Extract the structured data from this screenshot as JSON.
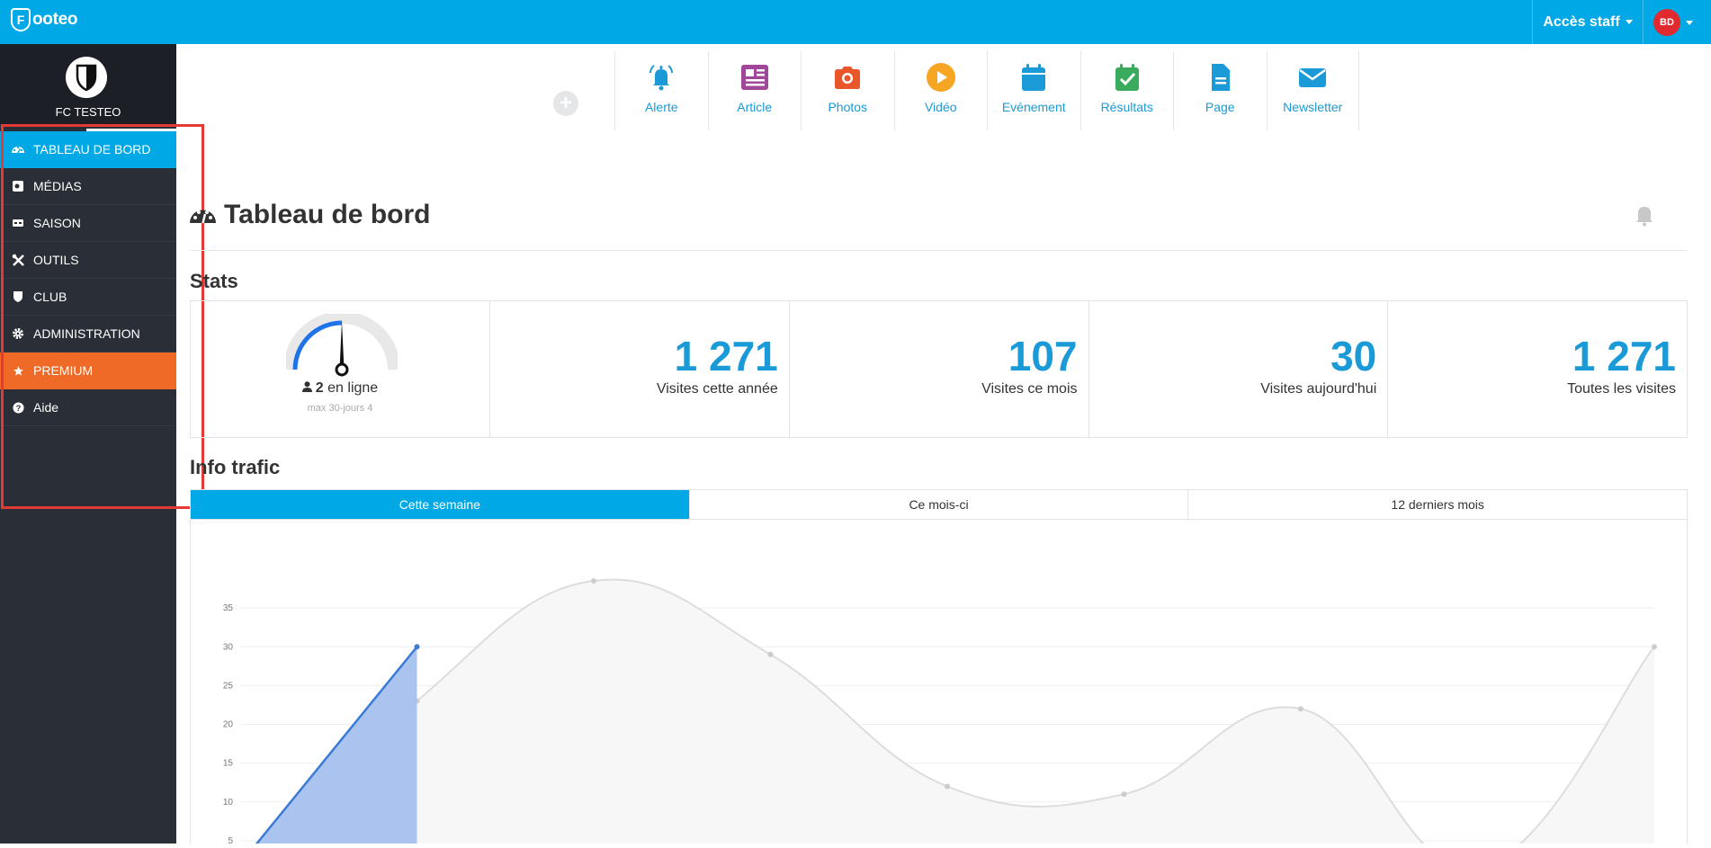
{
  "topbar": {
    "logo_letter": "F",
    "logo_text": "ooteo",
    "staff_label": "Accès staff",
    "user_initials": "BD"
  },
  "sidebar": {
    "club_name": "FC TESTEO",
    "items": [
      {
        "label": "TABLEAU DE BORD",
        "icon": "dashboard-icon"
      },
      {
        "label": "MÉDIAS",
        "icon": "media-icon"
      },
      {
        "label": "SAISON",
        "icon": "ticket-icon"
      },
      {
        "label": "OUTILS",
        "icon": "tools-icon"
      },
      {
        "label": "CLUB",
        "icon": "shield-icon"
      },
      {
        "label": "ADMINISTRATION",
        "icon": "gear-icon"
      },
      {
        "label": "PREMIUM",
        "icon": "star-icon"
      },
      {
        "label": "Aide",
        "icon": "help-icon"
      }
    ]
  },
  "quick_actions": {
    "add_label": "+",
    "items": [
      {
        "label": "Alerte",
        "icon": "bell-icon",
        "color": "#1a9ad6"
      },
      {
        "label": "Article",
        "icon": "newspaper-icon",
        "color": "#a0479a"
      },
      {
        "label": "Photos",
        "icon": "camera-icon",
        "color": "#e8562a"
      },
      {
        "label": "Vidéo",
        "icon": "play-icon",
        "color": "#f6a623"
      },
      {
        "label": "Evénement",
        "icon": "calendar-icon",
        "color": "#1a9ad6"
      },
      {
        "label": "Résultats",
        "icon": "calendar-check-icon",
        "color": "#3aaa5c"
      },
      {
        "label": "Page",
        "icon": "file-icon",
        "color": "#1a9ad6"
      },
      {
        "label": "Newsletter",
        "icon": "envelope-icon",
        "color": "#1a9ad6"
      }
    ]
  },
  "page": {
    "title": "Tableau de bord",
    "stats_title": "Stats",
    "traffic_title": "Info trafic"
  },
  "stats": {
    "online_count": "2",
    "online_label": "en ligne",
    "online_sub": "max 30-jours 4",
    "gauge_level": 0.5,
    "cards": [
      {
        "value": "1 271",
        "label": "Visites cette année"
      },
      {
        "value": "107",
        "label": "Visites ce mois"
      },
      {
        "value": "30",
        "label": "Visites aujourd'hui"
      },
      {
        "value": "1 271",
        "label": "Toutes les visites"
      }
    ]
  },
  "tabs": [
    "Cette semaine",
    "Ce mois-ci",
    "12 derniers mois"
  ],
  "chart_data": {
    "type": "area",
    "ylim": [
      0,
      40
    ],
    "yticks": [
      5,
      10,
      15,
      20,
      25,
      30,
      35
    ],
    "grid": true,
    "series": [
      {
        "values": [
          0,
          23,
          38.5,
          29,
          12,
          11,
          22,
          1.5,
          30
        ],
        "color": "#dddddd",
        "smooth": true
      },
      {
        "values": [
          2,
          30
        ],
        "color": "#3a7bd5",
        "fill": "#a7c1ee"
      }
    ]
  }
}
